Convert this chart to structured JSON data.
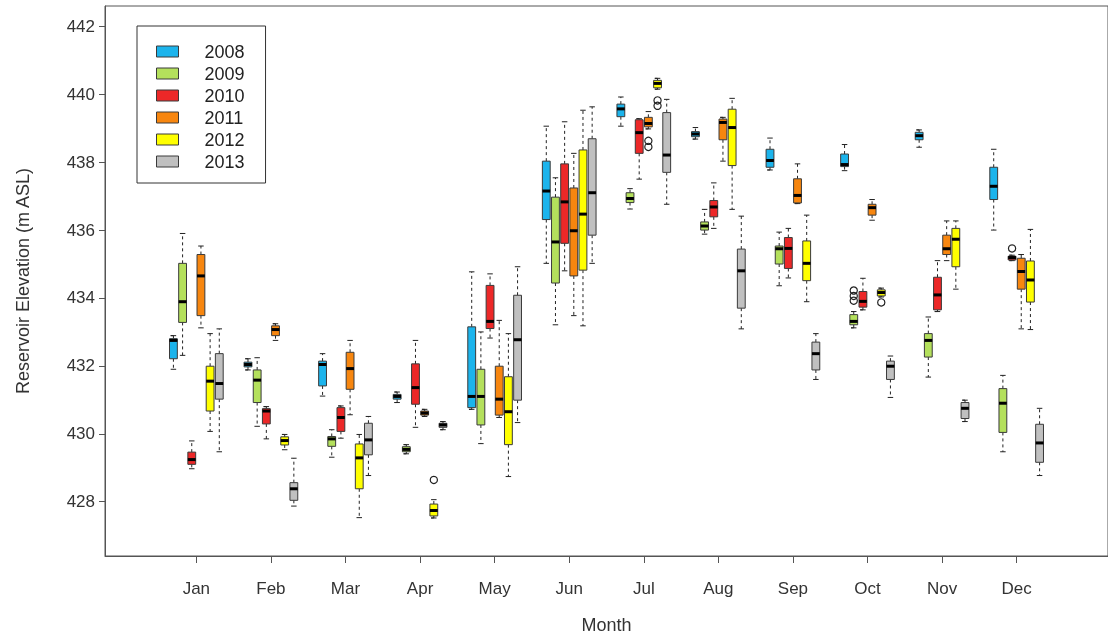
{
  "chart_data": {
    "type": "box",
    "xlabel": "Month",
    "ylabel": "Reservoir Elevation (m ASL)",
    "categories": [
      "Jan",
      "Feb",
      "Mar",
      "Apr",
      "May",
      "Jun",
      "Jul",
      "Aug",
      "Sep",
      "Oct",
      "Nov",
      "Dec"
    ],
    "ylim": [
      426.4,
      442.6
    ],
    "yticks": [
      428,
      430,
      432,
      434,
      436,
      438,
      440,
      442
    ],
    "legend": "top left",
    "series": [
      {
        "name": "2008",
        "color": "#1cb4ec",
        "boxes": [
          {
            "low": 431.9,
            "q1": 432.21,
            "median": 432.75,
            "q3": 432.8,
            "high": 432.89
          },
          {
            "low": 431.88,
            "q1": 431.97,
            "median": 432.04,
            "q3": 432.11,
            "high": 432.21
          },
          {
            "low": 431.11,
            "q1": 431.41,
            "median": 432.04,
            "q3": 432.14,
            "high": 432.36
          },
          {
            "low": 430.92,
            "q1": 431.02,
            "median": 431.1,
            "q3": 431.16,
            "high": 431.23
          },
          {
            "low": 430.72,
            "q1": 430.77,
            "median": 431.1,
            "q3": 433.15,
            "high": 434.77
          },
          {
            "low": 435.02,
            "q1": 436.31,
            "median": 437.15,
            "q3": 438.03,
            "high": 439.06
          },
          {
            "low": 439.06,
            "q1": 439.34,
            "median": 439.57,
            "q3": 439.71,
            "high": 439.92
          },
          {
            "low": 438.68,
            "q1": 438.75,
            "median": 438.83,
            "q3": 438.9,
            "high": 439.02
          },
          {
            "low": 437.77,
            "q1": 437.85,
            "median": 438.05,
            "q3": 438.38,
            "high": 438.71
          },
          {
            "low": 437.75,
            "q1": 437.87,
            "median": 437.93,
            "q3": 438.24,
            "high": 438.52
          },
          {
            "low": 438.44,
            "q1": 438.66,
            "median": 438.78,
            "q3": 438.88,
            "high": 438.95
          },
          {
            "low": 436.0,
            "q1": 436.9,
            "median": 437.29,
            "q3": 437.85,
            "high": 438.38
          }
        ]
      },
      {
        "name": "2009",
        "color": "#b4e05c",
        "boxes": [
          {
            "low": 432.31,
            "q1": 433.28,
            "median": 433.89,
            "q3": 435.02,
            "high": 435.9
          },
          {
            "low": 430.22,
            "q1": 430.92,
            "median": 431.58,
            "q3": 431.88,
            "high": 432.24
          },
          {
            "low": 429.31,
            "q1": 429.63,
            "median": 429.85,
            "q3": 429.92,
            "high": 430.12
          },
          {
            "low": 429.41,
            "q1": 429.47,
            "median": 429.54,
            "q3": 429.62,
            "high": 429.68
          },
          {
            "low": 429.71,
            "q1": 430.26,
            "median": 431.1,
            "q3": 431.9,
            "high": 433.0
          },
          {
            "low": 433.21,
            "q1": 434.44,
            "median": 435.65,
            "q3": 436.97,
            "high": 437.54
          },
          {
            "low": 436.62,
            "q1": 436.81,
            "median": 436.93,
            "q3": 437.1,
            "high": 437.22
          },
          {
            "low": 435.88,
            "q1": 436.0,
            "median": 436.12,
            "q3": 436.24,
            "high": 436.61
          },
          {
            "low": 434.36,
            "q1": 435.0,
            "median": 435.45,
            "q3": 435.53,
            "high": 435.94
          },
          {
            "low": 433.12,
            "q1": 433.21,
            "median": 433.31,
            "q3": 433.51,
            "high": 433.6,
            "outliers": [
              434.22,
              434.06,
              433.92
            ]
          },
          {
            "low": 431.67,
            "q1": 432.26,
            "median": 432.75,
            "q3": 432.95,
            "high": 433.44
          },
          {
            "low": 429.47,
            "q1": 430.04,
            "median": 430.9,
            "q3": 431.33,
            "high": 431.72
          }
        ]
      },
      {
        "name": "2010",
        "color": "#ec2828",
        "boxes": [
          {
            "low": 428.97,
            "q1": 429.1,
            "median": 429.24,
            "q3": 429.46,
            "high": 429.79
          },
          {
            "low": 429.85,
            "q1": 430.29,
            "median": 430.67,
            "q3": 430.74,
            "high": 430.8
          },
          {
            "low": 429.87,
            "q1": 430.07,
            "median": 430.48,
            "q3": 430.77,
            "high": 430.82
          },
          {
            "low": 430.19,
            "q1": 430.87,
            "median": 431.36,
            "q3": 432.06,
            "high": 432.75
          },
          {
            "low": 432.82,
            "q1": 433.1,
            "median": 433.31,
            "q3": 434.37,
            "high": 434.71
          },
          {
            "low": 434.8,
            "q1": 435.61,
            "median": 436.83,
            "q3": 437.95,
            "high": 439.19
          },
          {
            "low": 437.5,
            "q1": 438.26,
            "median": 438.87,
            "q3": 439.25,
            "high": 439.28
          },
          {
            "low": 436.05,
            "q1": 436.39,
            "median": 436.68,
            "q3": 436.87,
            "high": 437.39
          },
          {
            "low": 434.59,
            "q1": 434.87,
            "median": 435.46,
            "q3": 435.78,
            "high": 436.05
          },
          {
            "low": 433.65,
            "q1": 433.73,
            "median": 433.9,
            "q3": 434.19,
            "high": 434.58
          },
          {
            "low": 433.6,
            "q1": 433.65,
            "median": 434.09,
            "q3": 434.61,
            "high": 435.1
          },
          {
            "low": 435.1,
            "q1": 435.12,
            "median": 435.19,
            "q3": 435.23,
            "high": 435.26,
            "outliers": [
              435.46
            ]
          }
        ]
      },
      {
        "name": "2011",
        "color": "#f7860f",
        "boxes": [
          {
            "low": 433.12,
            "q1": 433.48,
            "median": 434.65,
            "q3": 435.28,
            "high": 435.53
          },
          {
            "low": 432.75,
            "q1": 432.89,
            "median": 433.07,
            "q3": 433.18,
            "high": 433.24
          },
          {
            "low": 430.56,
            "q1": 431.31,
            "median": 431.92,
            "q3": 432.4,
            "high": 432.75
          },
          {
            "low": 430.51,
            "q1": 430.55,
            "median": 430.61,
            "q3": 430.67,
            "high": 430.72
          },
          {
            "low": 430.48,
            "q1": 430.55,
            "median": 431.02,
            "q3": 431.99,
            "high": 433.34
          },
          {
            "low": 433.48,
            "q1": 434.65,
            "median": 435.98,
            "q3": 437.24,
            "high": 438.26
          },
          {
            "low": 438.98,
            "q1": 439.04,
            "median": 439.14,
            "q3": 439.32,
            "high": 439.49,
            "outliers": [
              438.63,
              438.45
            ]
          },
          {
            "low": 438.03,
            "q1": 438.66,
            "median": 439.17,
            "q3": 439.27,
            "high": 439.32
          },
          {
            "low": 436.78,
            "q1": 436.8,
            "median": 437.02,
            "q3": 437.51,
            "high": 437.95
          },
          {
            "low": 436.29,
            "q1": 436.44,
            "median": 436.66,
            "q3": 436.76,
            "high": 436.9
          },
          {
            "low": 435.1,
            "q1": 435.28,
            "median": 435.45,
            "q3": 435.85,
            "high": 436.27
          },
          {
            "low": 433.09,
            "q1": 434.26,
            "median": 434.78,
            "q3": 435.17,
            "high": 435.28
          }
        ]
      },
      {
        "name": "2012",
        "color": "#ffff00",
        "boxes": [
          {
            "low": 430.07,
            "q1": 430.67,
            "median": 431.55,
            "q3": 431.99,
            "high": 432.95
          },
          {
            "low": 429.53,
            "q1": 429.67,
            "median": 429.8,
            "q3": 429.91,
            "high": 429.98
          },
          {
            "low": 427.53,
            "q1": 428.38,
            "median": 429.29,
            "q3": 429.7,
            "high": 429.98
          },
          {
            "low": 427.52,
            "q1": 427.58,
            "median": 427.74,
            "q3": 427.93,
            "high": 428.06,
            "outliers": [
              428.64
            ]
          },
          {
            "low": 428.74,
            "q1": 429.68,
            "median": 430.65,
            "q3": 431.68,
            "high": 432.95
          },
          {
            "low": 433.18,
            "q1": 434.82,
            "median": 436.47,
            "q3": 438.36,
            "high": 439.53
          },
          {
            "low": 440.15,
            "q1": 440.19,
            "median": 440.32,
            "q3": 440.41,
            "high": 440.47,
            "outliers": [
              439.82,
              439.66
            ]
          },
          {
            "low": 436.61,
            "q1": 437.9,
            "median": 439.02,
            "q3": 439.56,
            "high": 439.88
          },
          {
            "low": 433.89,
            "q1": 434.51,
            "median": 435.02,
            "q3": 435.68,
            "high": 436.44
          },
          {
            "low": 434.03,
            "q1": 434.06,
            "median": 434.16,
            "q3": 434.24,
            "high": 434.29,
            "outliers": [
              433.87
            ]
          },
          {
            "low": 434.26,
            "q1": 434.92,
            "median": 435.73,
            "q3": 436.05,
            "high": 436.27
          },
          {
            "low": 433.07,
            "q1": 433.88,
            "median": 434.53,
            "q3": 435.09,
            "high": 436.02
          }
        ]
      },
      {
        "name": "2013",
        "color": "#c0c0c0",
        "boxes": [
          {
            "low": 429.47,
            "q1": 431.02,
            "median": 431.48,
            "q3": 432.36,
            "high": 433.09
          },
          {
            "low": 427.87,
            "q1": 428.04,
            "median": 428.38,
            "q3": 428.56,
            "high": 429.28
          },
          {
            "low": 428.77,
            "q1": 429.38,
            "median": 429.82,
            "q3": 430.31,
            "high": 430.51
          },
          {
            "low": 430.12,
            "q1": 430.19,
            "median": 430.26,
            "q3": 430.31,
            "high": 430.36
          },
          {
            "low": 430.33,
            "q1": 430.99,
            "median": 432.77,
            "q3": 434.08,
            "high": 434.92
          },
          {
            "low": 435.02,
            "q1": 435.85,
            "median": 437.1,
            "q3": 438.69,
            "high": 439.63
          },
          {
            "low": 436.76,
            "q1": 437.7,
            "median": 438.21,
            "q3": 439.46,
            "high": 439.85
          },
          {
            "low": 433.09,
            "q1": 433.7,
            "median": 434.8,
            "q3": 435.44,
            "high": 436.41
          },
          {
            "low": 431.6,
            "q1": 431.88,
            "median": 432.36,
            "q3": 432.7,
            "high": 432.95
          },
          {
            "low": 431.07,
            "q1": 431.6,
            "median": 431.99,
            "q3": 432.14,
            "high": 432.29
          },
          {
            "low": 430.36,
            "q1": 430.45,
            "median": 430.75,
            "q3": 430.92,
            "high": 430.99
          },
          {
            "low": 428.77,
            "q1": 429.16,
            "median": 429.73,
            "q3": 430.28,
            "high": 430.75
          }
        ]
      }
    ]
  }
}
